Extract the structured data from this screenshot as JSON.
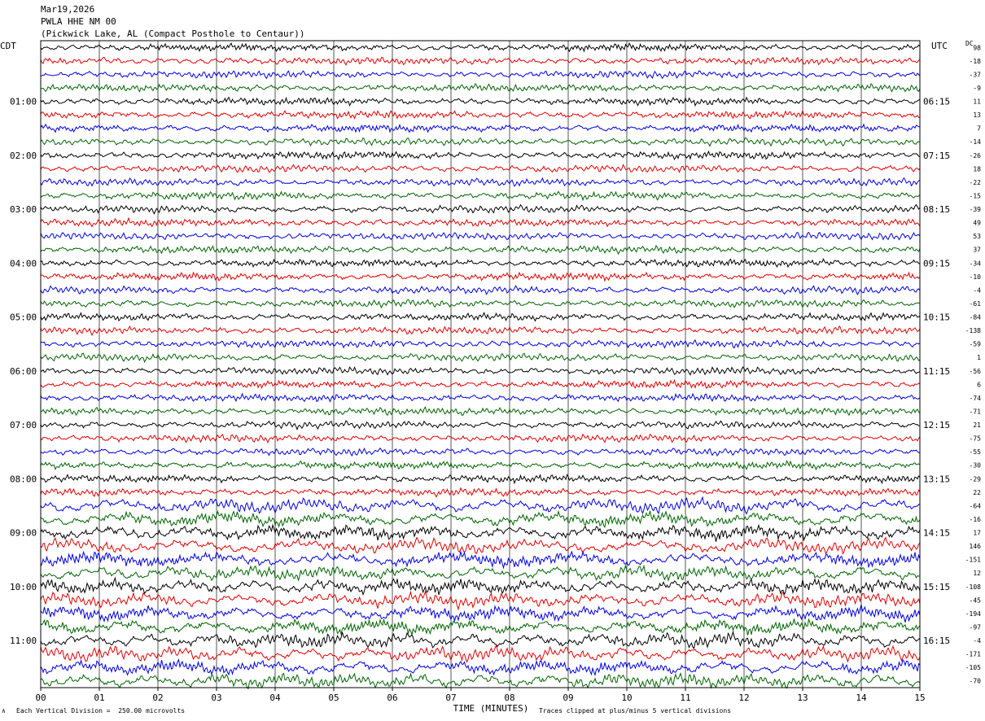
{
  "header": {
    "date": "Mar19,2026",
    "channel": "PWLA HHE NM 00",
    "location": "(Pickwick Lake, AL (Compact Posthole to Centaur))"
  },
  "left_tz": "CDT",
  "right_tz": "UTC",
  "dc_label": "DC",
  "footer": {
    "scale_note": "Each Vertical Division =  250.00 microvolts",
    "clip_note": "Traces clipped at plus/minus 5 vertical divisions",
    "corner_mark": "∧"
  },
  "chart_data": {
    "type": "line",
    "xlabel": "TIME (MINUTES)",
    "x_ticks": [
      "00",
      "01",
      "02",
      "03",
      "04",
      "05",
      "06",
      "07",
      "08",
      "09",
      "10",
      "11",
      "12",
      "13",
      "14",
      "15"
    ],
    "xlim": [
      0,
      15
    ],
    "traces_per_hour": 4,
    "trace_colors": [
      "#000000",
      "#e00000",
      "#0000e0",
      "#006400"
    ],
    "left_hour_labels": [
      "01:00",
      "02:00",
      "03:00",
      "04:00",
      "05:00",
      "06:00",
      "07:00",
      "08:00",
      "09:00",
      "10:00",
      "11:00"
    ],
    "right_hour_labels": [
      "06:15",
      "07:15",
      "08:15",
      "09:15",
      "10:15",
      "11:15",
      "12:15",
      "13:15",
      "14:15",
      "15:15",
      "16:15"
    ],
    "dc_offsets": [
      98,
      -18,
      -37,
      -9,
      11,
      13,
      7,
      -14,
      -26,
      18,
      -22,
      -15,
      -39,
      49,
      53,
      37,
      -34,
      -10,
      -4,
      -61,
      -84,
      -138,
      -59,
      1,
      -56,
      6,
      -74,
      -71,
      21,
      -75,
      -55,
      -30,
      -29,
      22,
      -64,
      -16,
      17,
      146,
      -151,
      12,
      -108,
      -45,
      -194,
      -97,
      -4,
      -171,
      -105,
      -70
    ]
  }
}
